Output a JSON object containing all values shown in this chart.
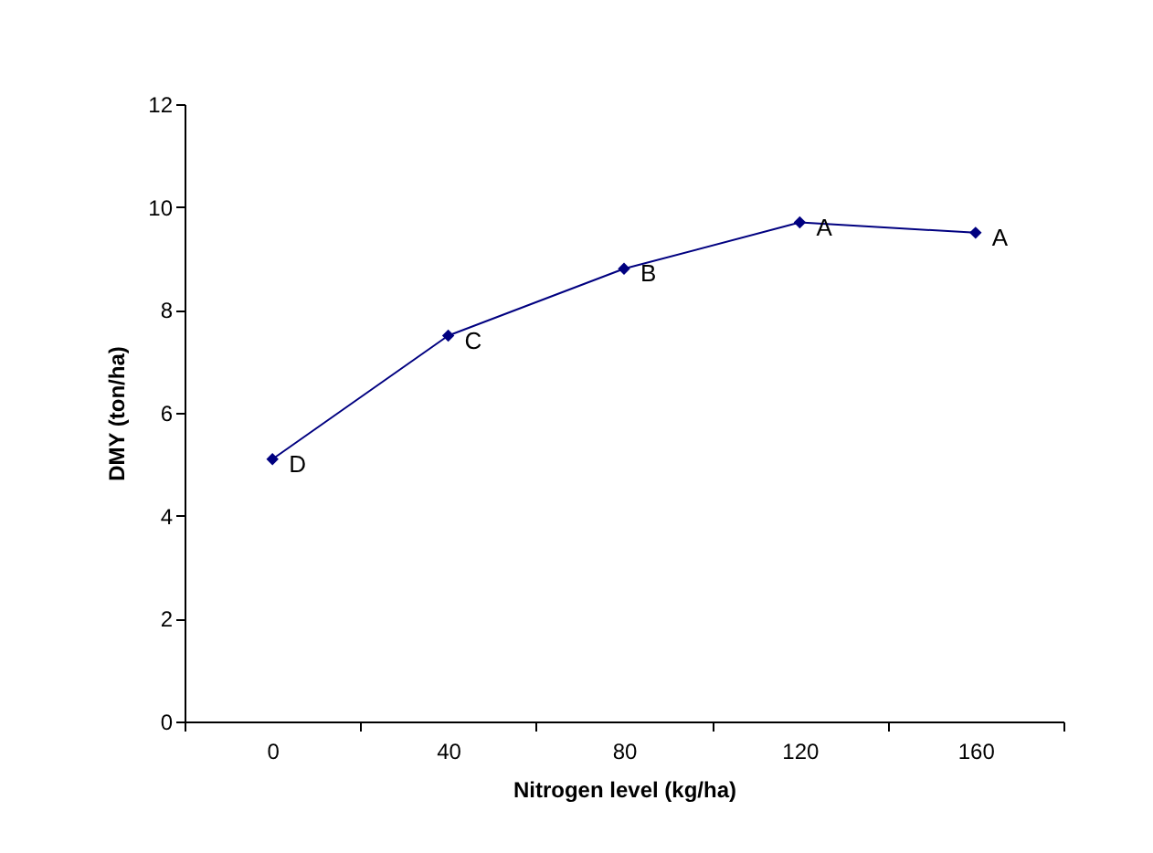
{
  "chart_data": {
    "type": "line",
    "xlabel": "Nitrogen level (kg/ha)",
    "ylabel": "DMY (ton/ha)",
    "categories": [
      "0",
      "40",
      "80",
      "120",
      "160"
    ],
    "series": [
      {
        "color": "#000080",
        "values": [
          5.1,
          7.5,
          8.8,
          9.7,
          9.5
        ]
      }
    ],
    "ylim": [
      0,
      12
    ],
    "yticks": [
      0,
      2,
      4,
      6,
      8,
      10,
      12
    ],
    "marker": "diamond",
    "annotations": [
      {
        "text": "D",
        "x": "0",
        "y": 5.1
      },
      {
        "text": "C",
        "x": "40",
        "y": 7.5
      },
      {
        "text": "B",
        "x": "80",
        "y": 8.8
      },
      {
        "text": "A",
        "x": "120",
        "y": 9.7
      },
      {
        "text": "A",
        "x": "160",
        "y": 9.5
      }
    ]
  }
}
